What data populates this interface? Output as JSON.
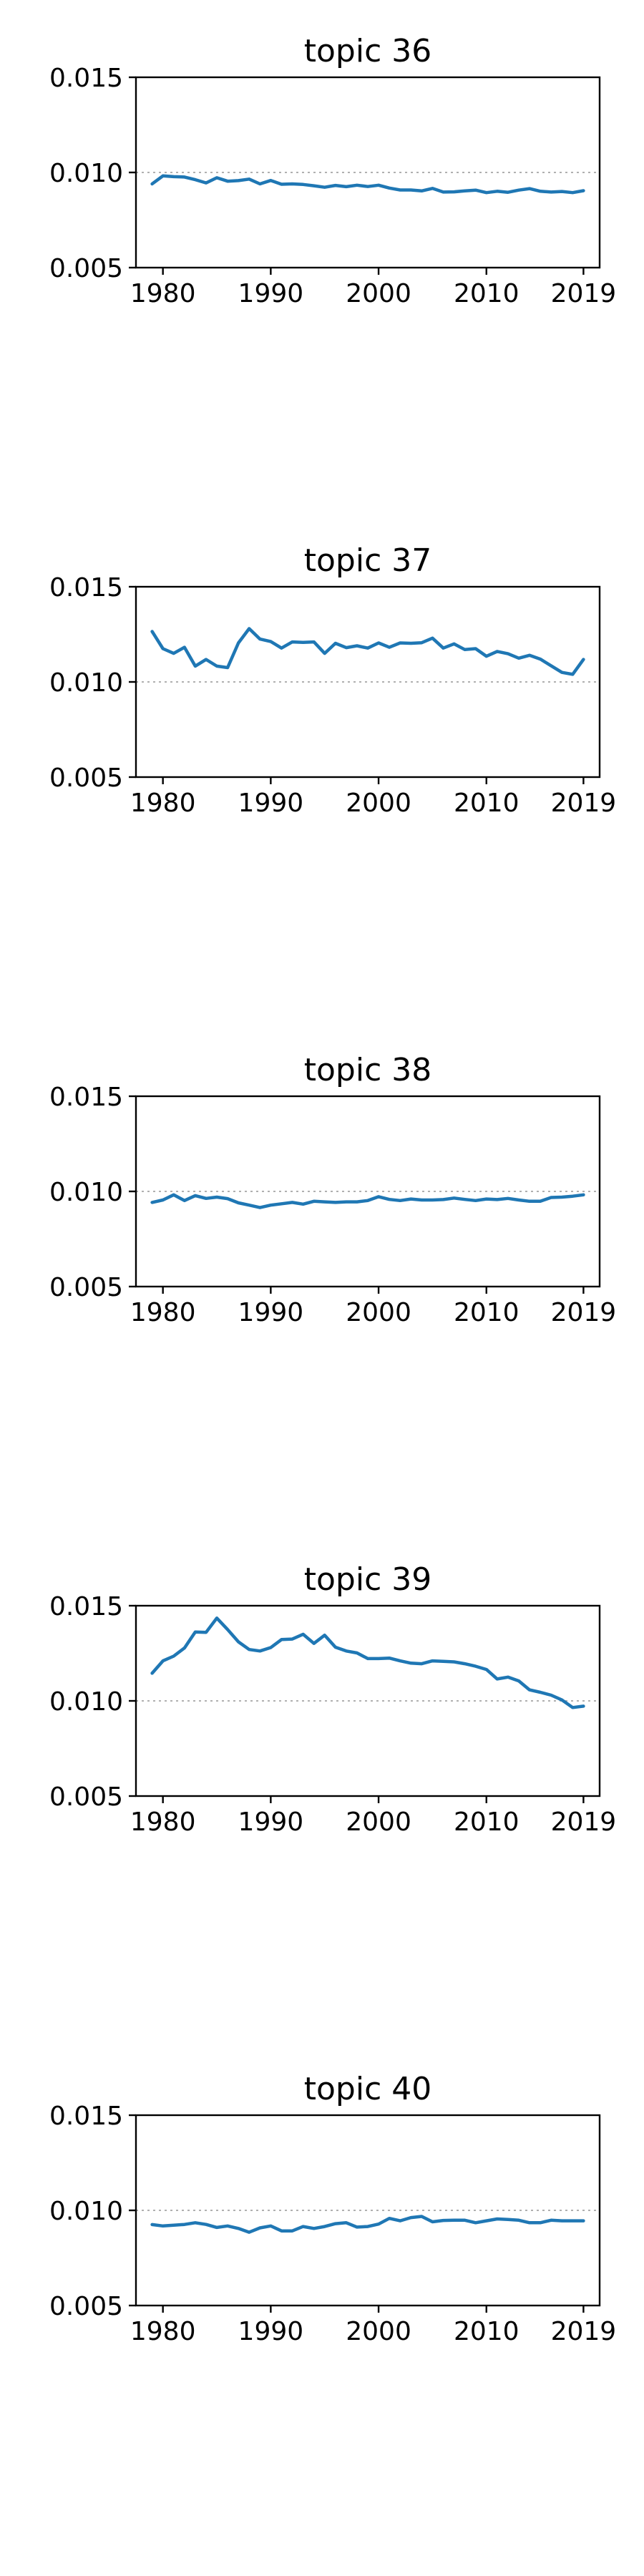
{
  "chart_data": [
    {
      "type": "line",
      "title": "topic 36",
      "xlabel": "",
      "ylabel": "",
      "xlim": [
        1977.5,
        2020.5
      ],
      "ylim": [
        0.005,
        0.015
      ],
      "xticks": [
        1980,
        1990,
        2000,
        2010,
        2019
      ],
      "yticks": [
        0.005,
        0.01,
        0.015
      ],
      "ytick_labels": [
        "0.005",
        "0.010",
        "0.015"
      ],
      "reference_line": 0.01,
      "grid": false,
      "color": "#1f77b4",
      "x": [
        1979,
        1980,
        1981,
        1982,
        1983,
        1984,
        1985,
        1986,
        1987,
        1988,
        1989,
        1990,
        1991,
        1992,
        1993,
        1994,
        1995,
        1996,
        1997,
        1998,
        1999,
        2000,
        2001,
        2002,
        2003,
        2004,
        2005,
        2006,
        2007,
        2008,
        2009,
        2010,
        2011,
        2012,
        2013,
        2014,
        2015,
        2016,
        2017,
        2018,
        2019
      ],
      "y": [
        0.0094,
        0.00982,
        0.00978,
        0.00976,
        0.00962,
        0.00945,
        0.00972,
        0.00954,
        0.00957,
        0.00965,
        0.0094,
        0.00958,
        0.00938,
        0.0094,
        0.00937,
        0.0093,
        0.00922,
        0.00932,
        0.00925,
        0.00933,
        0.00926,
        0.00933,
        0.00918,
        0.00908,
        0.00908,
        0.00903,
        0.00916,
        0.00897,
        0.00898,
        0.00903,
        0.00907,
        0.00894,
        0.00901,
        0.00896,
        0.00907,
        0.00915,
        0.00901,
        0.00897,
        0.009,
        0.00894,
        0.00904
      ]
    },
    {
      "type": "line",
      "title": "topic 37",
      "xlabel": "",
      "ylabel": "",
      "xlim": [
        1977.5,
        2020.5
      ],
      "ylim": [
        0.005,
        0.015
      ],
      "xticks": [
        1980,
        1990,
        2000,
        2010,
        2019
      ],
      "yticks": [
        0.005,
        0.01,
        0.015
      ],
      "ytick_labels": [
        "0.005",
        "0.010",
        "0.015"
      ],
      "reference_line": 0.01,
      "grid": false,
      "color": "#1f77b4",
      "x": [
        1979,
        1980,
        1981,
        1982,
        1983,
        1984,
        1985,
        1986,
        1987,
        1988,
        1989,
        1990,
        1991,
        1992,
        1993,
        1994,
        1995,
        1996,
        1997,
        1998,
        1999,
        2000,
        2001,
        2002,
        2003,
        2004,
        2005,
        2006,
        2007,
        2008,
        2009,
        2010,
        2011,
        2012,
        2013,
        2014,
        2015,
        2016,
        2017,
        2018,
        2019
      ],
      "y": [
        0.01265,
        0.01175,
        0.0115,
        0.01182,
        0.01083,
        0.01118,
        0.01083,
        0.01075,
        0.01205,
        0.0128,
        0.01225,
        0.01212,
        0.01178,
        0.0121,
        0.01208,
        0.0121,
        0.0115,
        0.01203,
        0.0118,
        0.0119,
        0.01178,
        0.01205,
        0.01182,
        0.01205,
        0.01203,
        0.01206,
        0.0123,
        0.01178,
        0.012,
        0.0117,
        0.01175,
        0.01135,
        0.0116,
        0.01148,
        0.01125,
        0.0114,
        0.0112,
        0.01085,
        0.0105,
        0.0104,
        0.01118
      ]
    },
    {
      "type": "line",
      "title": "topic 38",
      "xlabel": "",
      "ylabel": "",
      "xlim": [
        1977.5,
        2020.5
      ],
      "ylim": [
        0.005,
        0.015
      ],
      "xticks": [
        1980,
        1990,
        2000,
        2010,
        2019
      ],
      "yticks": [
        0.005,
        0.01,
        0.015
      ],
      "ytick_labels": [
        "0.005",
        "0.010",
        "0.015"
      ],
      "reference_line": 0.01,
      "grid": false,
      "color": "#1f77b4",
      "x": [
        1979,
        1980,
        1981,
        1982,
        1983,
        1984,
        1985,
        1986,
        1987,
        1988,
        1989,
        1990,
        1991,
        1992,
        1993,
        1994,
        1995,
        1996,
        1997,
        1998,
        1999,
        2000,
        2001,
        2002,
        2003,
        2004,
        2005,
        2006,
        2007,
        2008,
        2009,
        2010,
        2011,
        2012,
        2013,
        2014,
        2015,
        2016,
        2017,
        2018,
        2019
      ],
      "y": [
        0.00942,
        0.00955,
        0.00982,
        0.00952,
        0.00978,
        0.00963,
        0.0097,
        0.00962,
        0.0094,
        0.00928,
        0.00915,
        0.00928,
        0.00935,
        0.00942,
        0.00933,
        0.00948,
        0.00945,
        0.00942,
        0.00945,
        0.00945,
        0.00952,
        0.00972,
        0.00958,
        0.00952,
        0.0096,
        0.00955,
        0.00955,
        0.00957,
        0.00965,
        0.00958,
        0.00952,
        0.0096,
        0.00957,
        0.00963,
        0.00955,
        0.00948,
        0.00948,
        0.00968,
        0.0097,
        0.00975,
        0.00982
      ]
    },
    {
      "type": "line",
      "title": "topic 39",
      "xlabel": "",
      "ylabel": "",
      "xlim": [
        1977.5,
        2020.5
      ],
      "ylim": [
        0.005,
        0.015
      ],
      "xticks": [
        1980,
        1990,
        2000,
        2010,
        2019
      ],
      "yticks": [
        0.005,
        0.01,
        0.015
      ],
      "ytick_labels": [
        "0.005",
        "0.010",
        "0.015"
      ],
      "reference_line": 0.01,
      "grid": false,
      "color": "#1f77b4",
      "x": [
        1979,
        1980,
        1981,
        1982,
        1983,
        1984,
        1985,
        1986,
        1987,
        1988,
        1989,
        1990,
        1991,
        1992,
        1993,
        1994,
        1995,
        1996,
        1997,
        1998,
        1999,
        2000,
        2001,
        2002,
        2003,
        2004,
        2005,
        2006,
        2007,
        2008,
        2009,
        2010,
        2011,
        2012,
        2013,
        2014,
        2015,
        2016,
        2017,
        2018,
        2019
      ],
      "y": [
        0.01145,
        0.0121,
        0.01235,
        0.01278,
        0.01362,
        0.0136,
        0.01435,
        0.01375,
        0.0131,
        0.0127,
        0.01262,
        0.0128,
        0.01322,
        0.01325,
        0.0135,
        0.01302,
        0.01345,
        0.01282,
        0.01262,
        0.01252,
        0.01222,
        0.01222,
        0.01225,
        0.0121,
        0.01198,
        0.01195,
        0.0121,
        0.01208,
        0.01205,
        0.01195,
        0.01182,
        0.01165,
        0.01115,
        0.01125,
        0.01105,
        0.01058,
        0.01045,
        0.0103,
        0.01005,
        0.00965,
        0.00972
      ]
    },
    {
      "type": "line",
      "title": "topic 40",
      "xlabel": "",
      "ylabel": "",
      "xlim": [
        1977.5,
        2020.5
      ],
      "ylim": [
        0.005,
        0.015
      ],
      "xticks": [
        1980,
        1990,
        2000,
        2010,
        2019
      ],
      "yticks": [
        0.005,
        0.01,
        0.015
      ],
      "ytick_labels": [
        "0.005",
        "0.010",
        "0.015"
      ],
      "reference_line": 0.01,
      "grid": false,
      "color": "#1f77b4",
      "x": [
        1979,
        1980,
        1981,
        1982,
        1983,
        1984,
        1985,
        1986,
        1987,
        1988,
        1989,
        1990,
        1991,
        1992,
        1993,
        1994,
        1995,
        1996,
        1997,
        1998,
        1999,
        2000,
        2001,
        2002,
        2003,
        2004,
        2005,
        2006,
        2007,
        2008,
        2009,
        2010,
        2011,
        2012,
        2013,
        2014,
        2015,
        2016,
        2017,
        2018,
        2019
      ],
      "y": [
        0.00925,
        0.00918,
        0.00922,
        0.00926,
        0.00935,
        0.00926,
        0.0091,
        0.00918,
        0.00905,
        0.00885,
        0.00908,
        0.00918,
        0.00892,
        0.00892,
        0.00915,
        0.00905,
        0.00915,
        0.0093,
        0.00935,
        0.00912,
        0.00915,
        0.00928,
        0.00958,
        0.00945,
        0.00962,
        0.00968,
        0.0094,
        0.00947,
        0.00948,
        0.00948,
        0.00935,
        0.00945,
        0.00955,
        0.00952,
        0.00948,
        0.00935,
        0.00935,
        0.00948,
        0.00945,
        0.00945,
        0.00945
      ]
    }
  ]
}
